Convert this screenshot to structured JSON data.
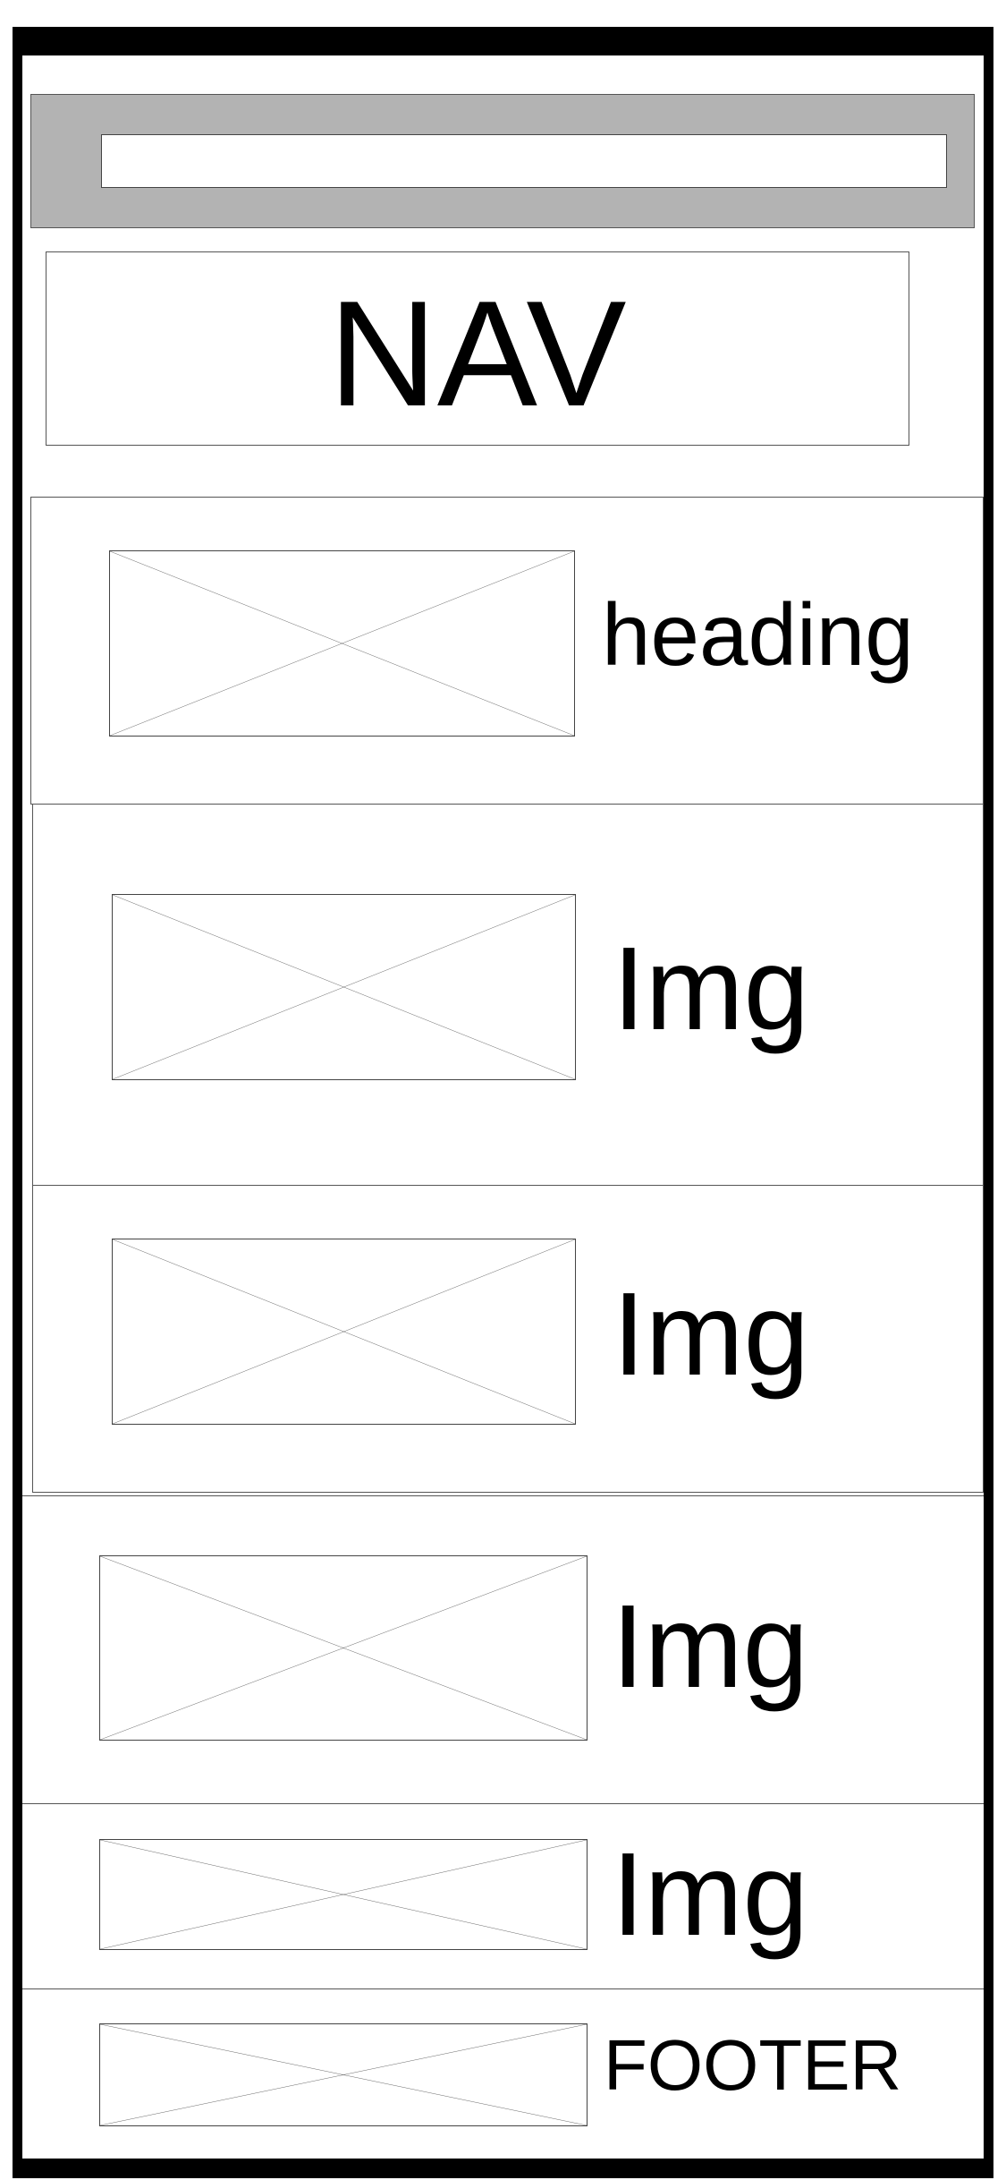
{
  "search": {
    "value": "",
    "placeholder": ""
  },
  "nav": {
    "label": "NAV"
  },
  "sections": [
    {
      "label": "heading"
    },
    {
      "label": "Img"
    },
    {
      "label": "Img"
    },
    {
      "label": "Img"
    },
    {
      "label": "Img"
    }
  ],
  "footer": {
    "label": "FOOTER"
  },
  "colors": {
    "frame": "#000000",
    "header_bar": "#b3b3b3",
    "outline": "#555555"
  },
  "icons": {
    "placeholder": "image-placeholder-icon"
  }
}
